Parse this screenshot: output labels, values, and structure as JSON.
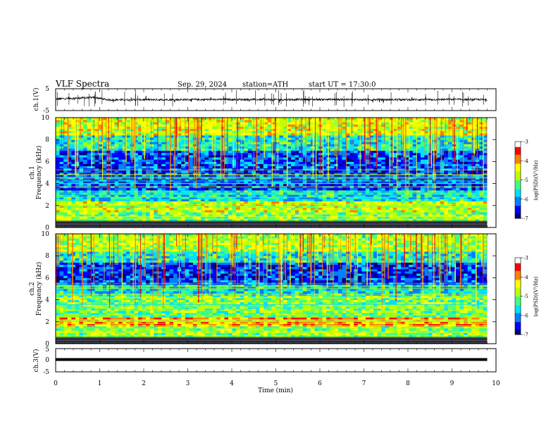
{
  "header": {
    "title": "VLF Spectra",
    "date": "Sep. 29, 2024",
    "station": "station=ATH",
    "start_time": "start UT =  17:30:0"
  },
  "colors": {
    "spectrogram_scale": [
      "#000080",
      "#0000ff",
      "#0080ff",
      "#00e0ff",
      "#40ff80",
      "#c0ff00",
      "#ffff00",
      "#ff8000",
      "#ff0000",
      "#ffffff"
    ]
  },
  "chart_data": [
    {
      "id": "ch1-waveform",
      "type": "line",
      "ylabel": "ch.1(V)",
      "ylim": [
        -5,
        5
      ],
      "y_ticks": [
        "5",
        "-5"
      ],
      "xlim": [
        0,
        10
      ],
      "series": [
        {
          "values": [
            {
              "x": 0.0,
              "y": 0.3
            },
            {
              "x": 0.5,
              "y": 0.7
            },
            {
              "x": 0.9,
              "y": 1.0
            },
            {
              "x": 1.05,
              "y": 0.4
            },
            {
              "x": 1.2,
              "y": -0.1
            },
            {
              "x": 2.0,
              "y": 0.0
            },
            {
              "x": 3.0,
              "y": 0.0
            },
            {
              "x": 4.0,
              "y": 0.1
            },
            {
              "x": 5.0,
              "y": 0.0
            },
            {
              "x": 6.0,
              "y": 0.1
            },
            {
              "x": 7.0,
              "y": 0.0
            },
            {
              "x": 8.0,
              "y": 0.0
            },
            {
              "x": 9.0,
              "y": 0.1
            },
            {
              "x": 9.8,
              "y": 0.0
            }
          ]
        }
      ]
    },
    {
      "id": "ch1-spectrogram",
      "type": "heatmap",
      "ylabel_prefix": "ch.1",
      "ylabel": "Frequency (kHz)",
      "ylim": [
        0,
        10
      ],
      "y_ticks": [
        "0",
        "2",
        "4",
        "6",
        "8",
        "10"
      ],
      "xlim": [
        0,
        10
      ],
      "colorbar": {
        "label": "log(PSD)(V²/Hz)",
        "range": [
          -7,
          -3
        ],
        "ticks": [
          "-3",
          "-4",
          "-5",
          "-6",
          "-7"
        ]
      },
      "bands_khz": [
        {
          "from": 0.0,
          "to": 0.6,
          "level": -7
        },
        {
          "from": 0.6,
          "to": 1.5,
          "level": -5
        },
        {
          "from": 1.5,
          "to": 2.5,
          "level": -4.6
        },
        {
          "from": 2.5,
          "to": 3.5,
          "level": -5.6
        },
        {
          "from": 3.5,
          "to": 7.0,
          "level": -6.3
        },
        {
          "from": 7.0,
          "to": 8.5,
          "level": -5.5
        },
        {
          "from": 8.5,
          "to": 10.0,
          "level": -4.6
        }
      ]
    },
    {
      "id": "ch2-spectrogram",
      "type": "heatmap",
      "ylabel_prefix": "ch.2",
      "ylabel": "Frequency (kHz)",
      "ylim": [
        0,
        10
      ],
      "y_ticks": [
        "0",
        "2",
        "4",
        "6",
        "8",
        "10"
      ],
      "xlim": [
        0,
        10
      ],
      "colorbar": {
        "label": "log(PSD)(V²/Hz)",
        "range": [
          -7,
          -3
        ],
        "ticks": [
          "-3",
          "-4",
          "-5",
          "-6",
          "-7"
        ]
      },
      "bands_khz": [
        {
          "from": 0.0,
          "to": 0.6,
          "level": -7
        },
        {
          "from": 0.6,
          "to": 1.6,
          "level": -4.9
        },
        {
          "from": 1.6,
          "to": 2.4,
          "level": -4.0
        },
        {
          "from": 2.4,
          "to": 4.5,
          "level": -5.0
        },
        {
          "from": 4.5,
          "to": 5.5,
          "level": -5.6
        },
        {
          "from": 5.5,
          "to": 7.5,
          "level": -6.4
        },
        {
          "from": 7.5,
          "to": 8.5,
          "level": -5.5
        },
        {
          "from": 8.5,
          "to": 10.0,
          "level": -4.8
        }
      ]
    },
    {
      "id": "ch3-waveform",
      "type": "line",
      "ylabel": "ch.3(V)",
      "ylim": [
        -5,
        5
      ],
      "y_ticks": [
        "5",
        "0",
        "-5"
      ],
      "xlim": [
        0,
        10
      ],
      "series": [
        {
          "values": [
            {
              "x": 0.0,
              "y": 0.0
            },
            {
              "x": 9.8,
              "y": 0.0
            }
          ]
        }
      ]
    }
  ],
  "x_axis": {
    "label": "Time (min)",
    "ticks": [
      "0",
      "1",
      "2",
      "3",
      "4",
      "5",
      "6",
      "7",
      "8",
      "9",
      "10"
    ]
  }
}
